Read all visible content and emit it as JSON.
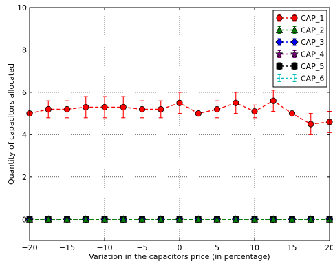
{
  "chart_data": {
    "type": "line",
    "title": "",
    "xlabel": "Variation in the capacitors price (in percentage)",
    "ylabel": "Quantity of capacitors allocated",
    "xlim": [
      -20,
      20
    ],
    "ylim": [
      -1,
      10
    ],
    "xticks": [
      -20,
      -15,
      -10,
      -5,
      0,
      5,
      10,
      15,
      20
    ],
    "yticks": [
      0,
      2,
      4,
      6,
      8,
      10
    ],
    "xtick_labels": [
      "−20",
      "−15",
      "−10",
      "−5",
      "0",
      "5",
      "10",
      "15",
      "20"
    ],
    "ytick_labels": [
      "0",
      "2",
      "4",
      "6",
      "8",
      "10"
    ],
    "grid": true,
    "legend_position": "top-right",
    "x": [
      -20,
      -17.5,
      -15,
      -12.5,
      -10,
      -7.5,
      -5,
      -2.5,
      0,
      2.5,
      5,
      7.5,
      10,
      12.5,
      15,
      17.5,
      20
    ],
    "series": [
      {
        "name": "CAP_1",
        "color": "#ff0000",
        "line_color": "#ff0000",
        "marker": "circle",
        "values": [
          5.0,
          5.2,
          5.2,
          5.3,
          5.3,
          5.3,
          5.2,
          5.2,
          5.5,
          5.0,
          5.2,
          5.5,
          5.1,
          5.6,
          5.0,
          4.5,
          4.6
        ],
        "errors": [
          0.05,
          0.4,
          0.4,
          0.5,
          0.5,
          0.5,
          0.4,
          0.4,
          0.5,
          0.05,
          0.4,
          0.5,
          0.3,
          0.5,
          0.05,
          0.5,
          0.5
        ]
      },
      {
        "name": "CAP_2",
        "color": "#008000",
        "line_color": "#008000",
        "marker": "triangle",
        "values": [
          0,
          0,
          0,
          0,
          0,
          0,
          0,
          0,
          0,
          0,
          0,
          0,
          0,
          0,
          0,
          0,
          0
        ],
        "errors": [
          0,
          0,
          0,
          0,
          0,
          0,
          0,
          0,
          0,
          0,
          0,
          0,
          0,
          0,
          0,
          0,
          0
        ]
      },
      {
        "name": "CAP_3",
        "color": "#0000ff",
        "line_color": "#0000ff",
        "marker": "diamond",
        "values": [
          0,
          0,
          0,
          0,
          0,
          0,
          0,
          0,
          0,
          0,
          0,
          0,
          0,
          0,
          0,
          0,
          0
        ],
        "errors": [
          0,
          0,
          0,
          0,
          0,
          0,
          0,
          0,
          0,
          0,
          0,
          0,
          0,
          0,
          0,
          0,
          0
        ]
      },
      {
        "name": "CAP_4",
        "color": "#800080",
        "line_color": "#800080",
        "marker": "star",
        "values": [
          0,
          0,
          0,
          0,
          0,
          0,
          0,
          0,
          0,
          0,
          0,
          0,
          0,
          0,
          0,
          0,
          0
        ],
        "errors": [
          0,
          0,
          0,
          0,
          0,
          0,
          0,
          0,
          0,
          0,
          0,
          0,
          0,
          0,
          0,
          0,
          0
        ]
      },
      {
        "name": "CAP_5",
        "color": "#000000",
        "line_color": "#000000",
        "marker": "square",
        "values": [
          0,
          0,
          0,
          0,
          0,
          0,
          0,
          0,
          0,
          0,
          0,
          0,
          0,
          0,
          0,
          0,
          0
        ],
        "errors": [
          0,
          0,
          0,
          0,
          0,
          0,
          0,
          0,
          0,
          0,
          0,
          0,
          0,
          0,
          0,
          0,
          0
        ]
      },
      {
        "name": "CAP_6",
        "color": "#00bfbf",
        "line_color": "#00bfbf",
        "marker": "none",
        "values": [
          0,
          0,
          0,
          0,
          0,
          0,
          0,
          0,
          0,
          0,
          0,
          0,
          0,
          0,
          0,
          0,
          0
        ],
        "errors": [
          0,
          0,
          0,
          0,
          0,
          0,
          0,
          0,
          0,
          0,
          0,
          0,
          0,
          0,
          0,
          0,
          0
        ]
      }
    ]
  }
}
